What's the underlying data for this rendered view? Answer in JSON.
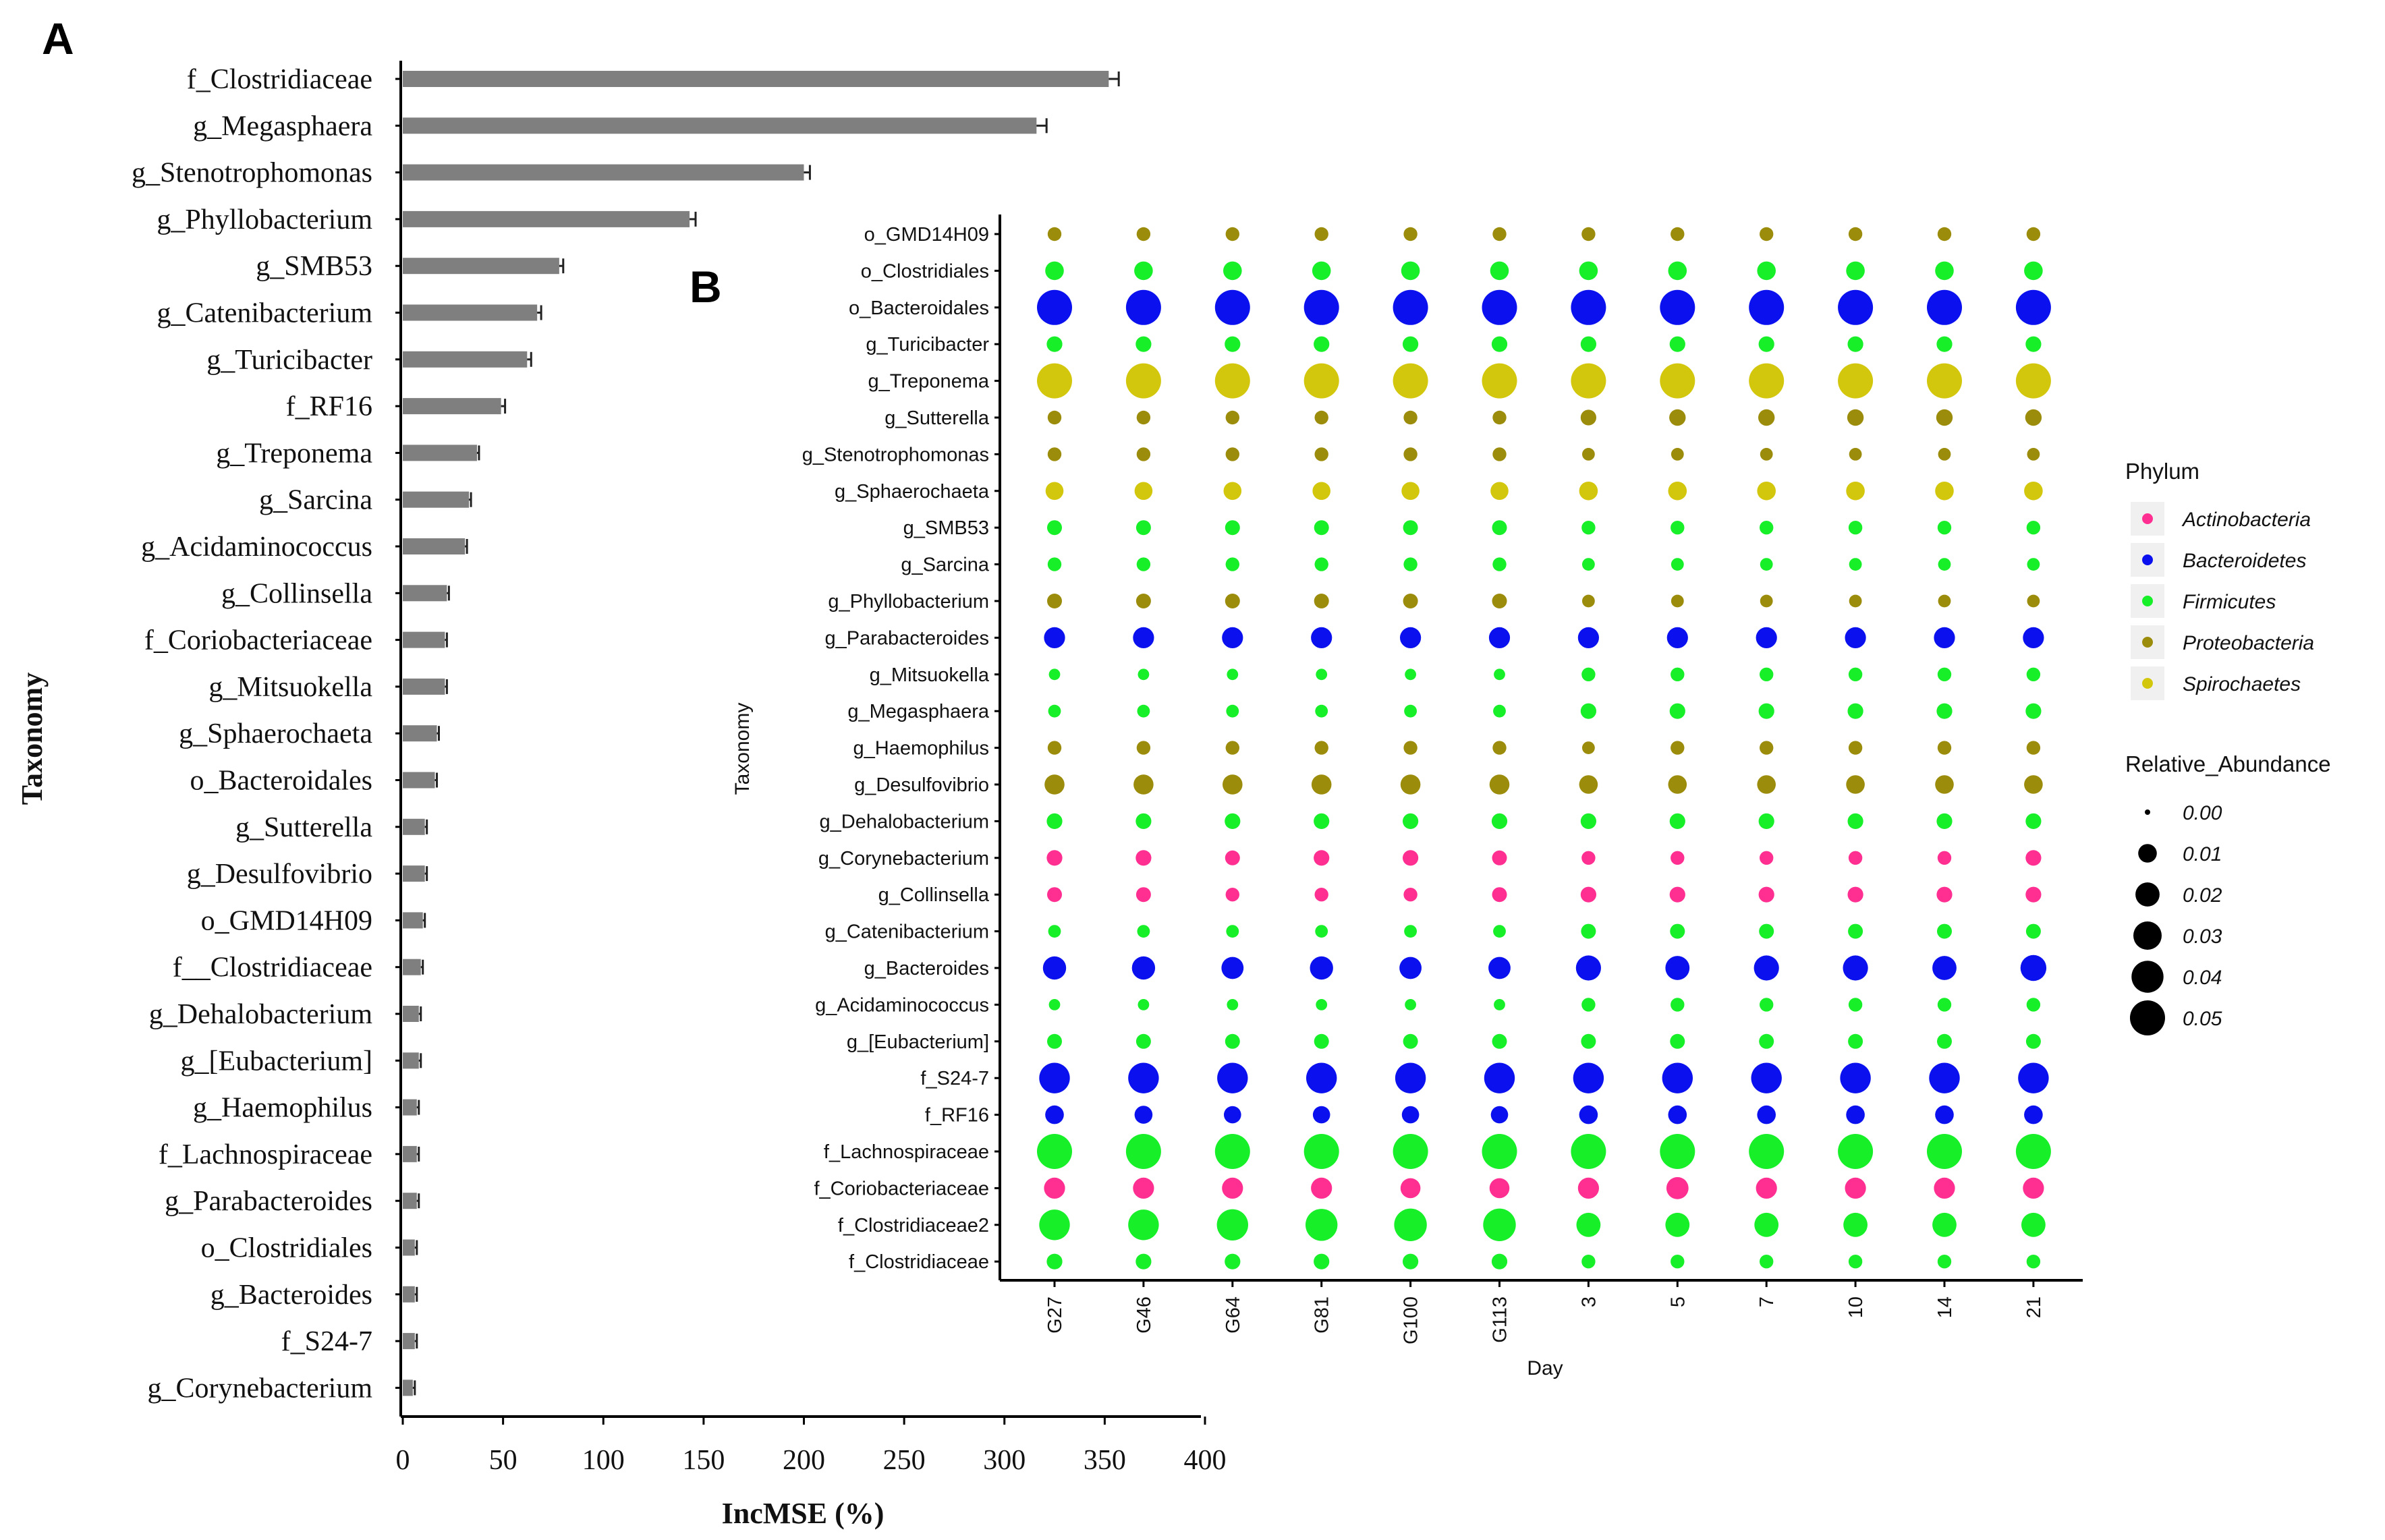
{
  "chart_data": [
    {
      "panel": "A",
      "type": "bar",
      "orientation": "horizontal",
      "xlabel": "IncMSE (%)",
      "ylabel": "Taxonomy",
      "xlim": [
        0,
        400
      ],
      "xticks": [
        "0",
        "50",
        "100",
        "150",
        "200",
        "250",
        "300",
        "350",
        "400"
      ],
      "bar_color": "#7f7f7f",
      "categories": [
        "f_Clostridiaceae",
        "g_Megasphaera",
        "g_Stenotrophomonas",
        "g_Phyllobacterium",
        "g_SMB53",
        "g_Catenibacterium",
        "g_Turicibacter",
        "f_RF16",
        "g_Treponema",
        "g_Sarcina",
        "g_Acidaminococcus",
        "g_Collinsella",
        "f_Coriobacteriaceae",
        "g_Mitsuokella",
        "g_Sphaerochaeta",
        "o_Bacteroidales",
        "g_Sutterella",
        "g_Desulfovibrio",
        "o_GMD14H09",
        "f__Clostridiaceae",
        "g_Dehalobacterium",
        "g_[Eubacterium]",
        "g_Haemophilus",
        "f_Lachnospiraceae",
        "g_Parabacteroides",
        "o_Clostridiales",
        "g_Bacteroides",
        "f_S24-7",
        "g_Corynebacterium"
      ],
      "values": [
        352,
        316,
        200,
        143,
        78,
        67,
        62,
        49,
        37,
        33,
        31,
        22,
        21,
        21,
        17,
        16,
        11,
        11,
        10,
        9,
        8,
        8,
        7,
        7,
        7,
        6,
        6,
        6,
        5
      ],
      "errors": [
        5,
        5,
        3,
        3,
        2,
        2,
        2,
        2,
        1,
        1,
        1,
        1,
        1,
        1,
        1,
        1,
        1,
        1,
        1,
        1,
        1,
        1,
        1,
        1,
        1,
        1,
        1,
        1,
        1
      ]
    },
    {
      "panel": "B",
      "type": "scatter",
      "subtype": "bubble",
      "xlabel": "Day",
      "ylabel": "Taxonomy",
      "x": [
        "G27",
        "G46",
        "G64",
        "G81",
        "G100",
        "G113",
        "3",
        "5",
        "7",
        "10",
        "14",
        "21"
      ],
      "taxa": [
        "o_GMD14H09",
        "o_Clostridiales",
        "o_Bacteroidales",
        "g_Turicibacter",
        "g_Treponema",
        "g_Sutterella",
        "g_Stenotrophomonas",
        "g_Sphaerochaeta",
        "g_SMB53",
        "g_Sarcina",
        "g_Phyllobacterium",
        "g_Parabacteroides",
        "g_Mitsuokella",
        "g_Megasphaera",
        "g_Haemophilus",
        "g_Desulfovibrio",
        "g_Dehalobacterium",
        "g_Corynebacterium",
        "g_Collinsella",
        "g_Catenibacterium",
        "g_Bacteroides",
        "g_Acidaminococcus",
        "g_[Eubacterium]",
        "f_S24-7",
        "f_RF16",
        "f_Lachnospiraceae",
        "f_Coriobacteriaceae",
        "f_Clostridiaceae2",
        "f_Clostridiaceae"
      ],
      "phylum_of_taxon": [
        "Proteobacteria",
        "Firmicutes",
        "Bacteroidetes",
        "Firmicutes",
        "Spirochaetes",
        "Proteobacteria",
        "Proteobacteria",
        "Spirochaetes",
        "Firmicutes",
        "Firmicutes",
        "Proteobacteria",
        "Bacteroidetes",
        "Firmicutes",
        "Firmicutes",
        "Proteobacteria",
        "Proteobacteria",
        "Firmicutes",
        "Actinobacteria",
        "Actinobacteria",
        "Firmicutes",
        "Bacteroidetes",
        "Firmicutes",
        "Firmicutes",
        "Bacteroidetes",
        "Bacteroidetes",
        "Firmicutes",
        "Actinobacteria",
        "Firmicutes",
        "Firmicutes"
      ],
      "relative_abundance": [
        [
          0.004,
          0.004,
          0.004,
          0.004,
          0.004,
          0.004,
          0.004,
          0.004,
          0.004,
          0.004,
          0.004,
          0.004
        ],
        [
          0.01,
          0.01,
          0.01,
          0.01,
          0.01,
          0.01,
          0.01,
          0.01,
          0.01,
          0.01,
          0.01,
          0.01
        ],
        [
          0.05,
          0.05,
          0.05,
          0.05,
          0.05,
          0.05,
          0.05,
          0.05,
          0.05,
          0.05,
          0.05,
          0.05
        ],
        [
          0.006,
          0.006,
          0.006,
          0.006,
          0.006,
          0.006,
          0.006,
          0.006,
          0.006,
          0.006,
          0.006,
          0.006
        ],
        [
          0.05,
          0.05,
          0.05,
          0.05,
          0.05,
          0.05,
          0.05,
          0.05,
          0.05,
          0.05,
          0.05,
          0.05
        ],
        [
          0.004,
          0.004,
          0.004,
          0.004,
          0.004,
          0.004,
          0.006,
          0.007,
          0.007,
          0.007,
          0.007,
          0.007
        ],
        [
          0.004,
          0.004,
          0.004,
          0.004,
          0.004,
          0.004,
          0.003,
          0.003,
          0.003,
          0.003,
          0.003,
          0.003
        ],
        [
          0.009,
          0.009,
          0.009,
          0.009,
          0.009,
          0.009,
          0.01,
          0.01,
          0.01,
          0.01,
          0.01,
          0.01
        ],
        [
          0.005,
          0.005,
          0.005,
          0.005,
          0.005,
          0.005,
          0.004,
          0.004,
          0.004,
          0.004,
          0.004,
          0.004
        ],
        [
          0.004,
          0.004,
          0.004,
          0.004,
          0.004,
          0.004,
          0.003,
          0.003,
          0.003,
          0.003,
          0.003,
          0.003
        ],
        [
          0.005,
          0.005,
          0.005,
          0.005,
          0.005,
          0.005,
          0.003,
          0.003,
          0.003,
          0.003,
          0.003,
          0.003
        ],
        [
          0.014,
          0.014,
          0.014,
          0.014,
          0.014,
          0.014,
          0.014,
          0.014,
          0.014,
          0.014,
          0.014,
          0.014
        ],
        [
          0.002,
          0.002,
          0.002,
          0.002,
          0.002,
          0.002,
          0.004,
          0.004,
          0.004,
          0.004,
          0.004,
          0.004
        ],
        [
          0.003,
          0.003,
          0.003,
          0.003,
          0.003,
          0.003,
          0.006,
          0.006,
          0.006,
          0.006,
          0.006,
          0.006
        ],
        [
          0.004,
          0.004,
          0.004,
          0.004,
          0.004,
          0.004,
          0.003,
          0.004,
          0.004,
          0.004,
          0.004,
          0.004
        ],
        [
          0.012,
          0.012,
          0.012,
          0.012,
          0.012,
          0.012,
          0.01,
          0.01,
          0.01,
          0.01,
          0.01,
          0.01
        ],
        [
          0.006,
          0.006,
          0.006,
          0.006,
          0.006,
          0.006,
          0.006,
          0.006,
          0.006,
          0.006,
          0.006,
          0.006
        ],
        [
          0.006,
          0.006,
          0.005,
          0.006,
          0.006,
          0.005,
          0.004,
          0.004,
          0.004,
          0.004,
          0.004,
          0.006
        ],
        [
          0.005,
          0.005,
          0.004,
          0.004,
          0.004,
          0.005,
          0.006,
          0.006,
          0.006,
          0.006,
          0.006,
          0.006
        ],
        [
          0.003,
          0.003,
          0.003,
          0.003,
          0.003,
          0.003,
          0.005,
          0.005,
          0.005,
          0.005,
          0.005,
          0.005
        ],
        [
          0.018,
          0.018,
          0.016,
          0.018,
          0.016,
          0.016,
          0.022,
          0.02,
          0.022,
          0.022,
          0.02,
          0.024
        ],
        [
          0.002,
          0.002,
          0.002,
          0.002,
          0.002,
          0.002,
          0.004,
          0.004,
          0.004,
          0.004,
          0.004,
          0.004
        ],
        [
          0.005,
          0.005,
          0.005,
          0.005,
          0.005,
          0.005,
          0.005,
          0.005,
          0.005,
          0.005,
          0.005,
          0.005
        ],
        [
          0.036,
          0.036,
          0.036,
          0.036,
          0.036,
          0.036,
          0.036,
          0.036,
          0.036,
          0.036,
          0.036,
          0.036
        ],
        [
          0.01,
          0.009,
          0.008,
          0.008,
          0.008,
          0.008,
          0.01,
          0.01,
          0.01,
          0.01,
          0.01,
          0.01
        ],
        [
          0.05,
          0.05,
          0.05,
          0.05,
          0.05,
          0.05,
          0.05,
          0.05,
          0.05,
          0.05,
          0.05,
          0.05
        ],
        [
          0.014,
          0.014,
          0.014,
          0.014,
          0.012,
          0.012,
          0.014,
          0.016,
          0.014,
          0.014,
          0.014,
          0.014
        ],
        [
          0.036,
          0.036,
          0.038,
          0.04,
          0.042,
          0.042,
          0.02,
          0.02,
          0.02,
          0.02,
          0.02,
          0.02
        ],
        [
          0.006,
          0.006,
          0.006,
          0.006,
          0.006,
          0.006,
          0.004,
          0.004,
          0.004,
          0.004,
          0.004,
          0.004
        ]
      ],
      "legend_phylum_title": "Phylum",
      "legend_phylum": [
        {
          "name": "Actinobacteria",
          "color": "#ff2f92"
        },
        {
          "name": "Bacteroidetes",
          "color": "#0a10ee"
        },
        {
          "name": "Firmicutes",
          "color": "#17ef28"
        },
        {
          "name": "Proteobacteria",
          "color": "#9c8c0c"
        },
        {
          "name": "Spirochaetes",
          "color": "#d2c70c"
        }
      ],
      "legend_size_title": "Relative_Abundance",
      "legend_size": [
        "0.00",
        "0.01",
        "0.02",
        "0.03",
        "0.04",
        "0.05"
      ],
      "legend_size_values": [
        0.0,
        0.01,
        0.02,
        0.03,
        0.04,
        0.05
      ],
      "legend_placement": "right"
    }
  ]
}
